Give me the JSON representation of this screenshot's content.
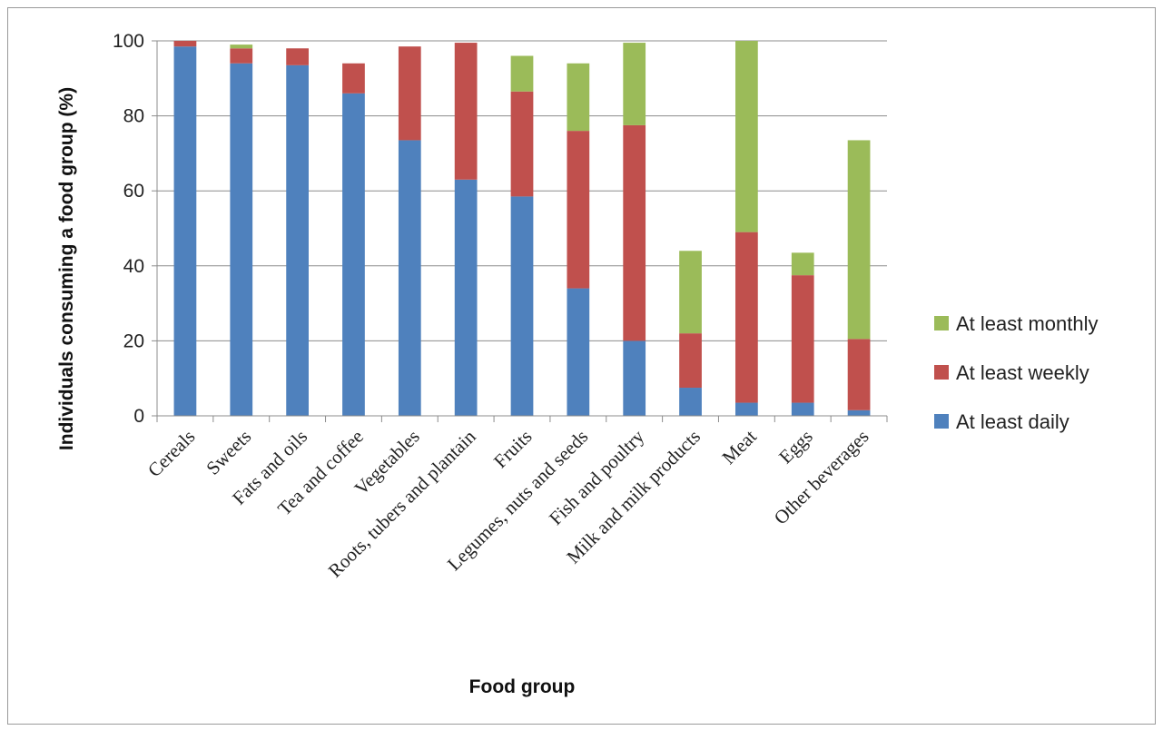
{
  "chart_data": {
    "type": "bar",
    "stacked": true,
    "title": "",
    "xlabel": "Food group",
    "ylabel": "Individuals consuming a food group (%)",
    "ylim": [
      0,
      100
    ],
    "yticks": [
      "0",
      "20",
      "40",
      "60",
      "80",
      "100"
    ],
    "grid": true,
    "legend_position": "right",
    "categories": [
      "Cereals",
      "Sweets",
      "Fats and oils",
      "Tea and coffee",
      "Vegetables",
      "Roots, tubers and plantain",
      "Fruits",
      "Legumes, nuts and seeds",
      "Fish and poultry",
      "Milk and milk products",
      "Meat",
      "Eggs",
      "Other beverages"
    ],
    "series": [
      {
        "name": "At least daily",
        "color": "#4f81bd",
        "values": [
          98.5,
          94,
          93.5,
          86,
          73.5,
          63,
          58.5,
          34,
          20,
          7.5,
          3.5,
          3.5,
          1.5
        ]
      },
      {
        "name": "At least weekly",
        "color": "#c0504d",
        "values": [
          1.5,
          4,
          4.5,
          8,
          25,
          36.5,
          28,
          42,
          57.5,
          14.5,
          45.5,
          34,
          19
        ]
      },
      {
        "name": "At least monthly",
        "color": "#9bbb59",
        "values": [
          0,
          1,
          0,
          0,
          0,
          0,
          9.5,
          18,
          22,
          22,
          51,
          6,
          53
        ]
      }
    ],
    "legend_order": [
      "At least monthly",
      "At least weekly",
      "At least daily"
    ]
  }
}
